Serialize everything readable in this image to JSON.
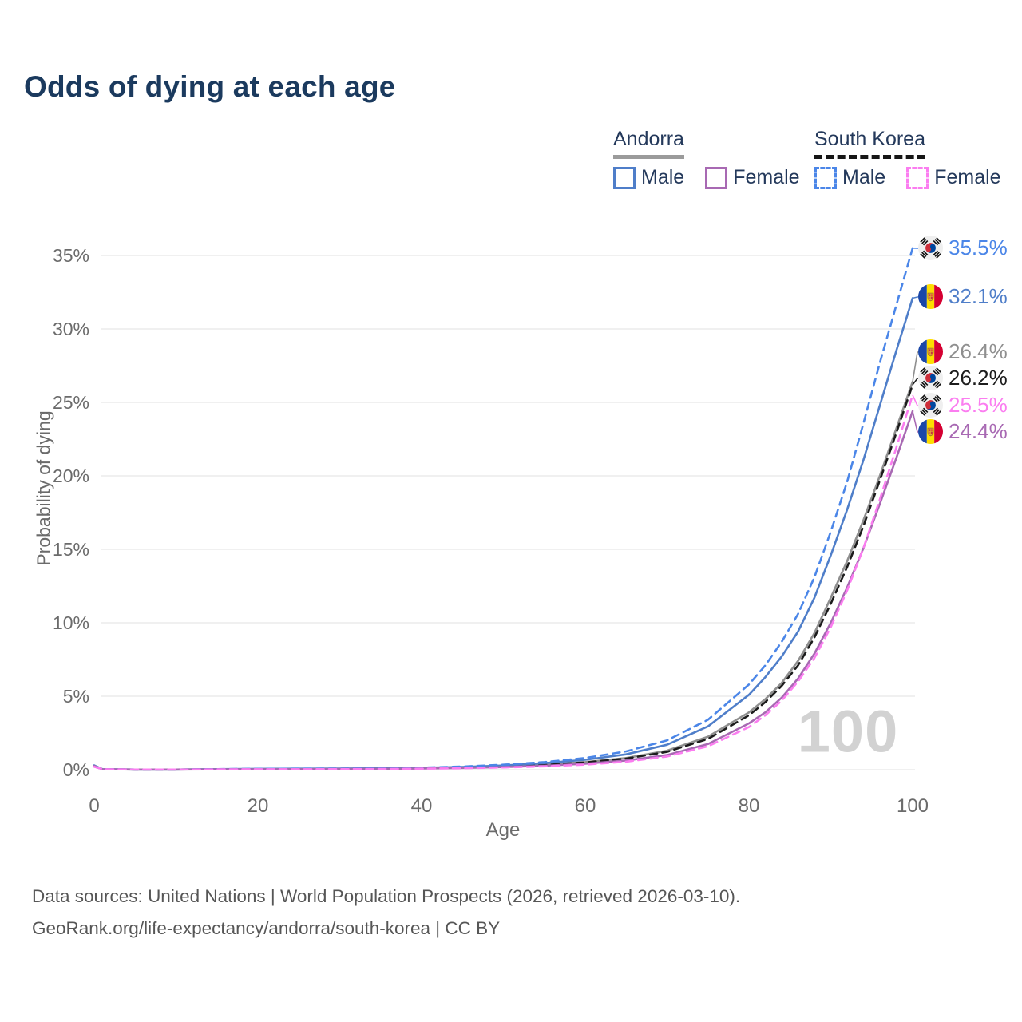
{
  "header": {
    "title": "Odds of dying at each age"
  },
  "legend": {
    "groups": [
      {
        "name": "Andorra",
        "line_style": "solid",
        "underline_color": "#9b9b9b",
        "items": [
          {
            "label": "Male",
            "color": "#4f7ec9",
            "dashed": false
          },
          {
            "label": "Female",
            "color": "#a869b3",
            "dashed": false
          }
        ]
      },
      {
        "name": "South Korea",
        "line_style": "dashed",
        "underline_color": "#161616",
        "items": [
          {
            "label": "Male",
            "color": "#4b86e8",
            "dashed": true
          },
          {
            "label": "Female",
            "color": "#fb7df0",
            "dashed": true
          }
        ]
      }
    ]
  },
  "chart_data": {
    "type": "line",
    "title": "Odds of dying at each age",
    "xlabel": "Age",
    "ylabel": "Probability of dying",
    "xlim": [
      0,
      100
    ],
    "ylim_pct": [
      0,
      37
    ],
    "grid": "horizontal",
    "legend_position": "top-right",
    "hover_age_watermark": "100",
    "x_ticks": [
      {
        "value": 0,
        "label": "0"
      },
      {
        "value": 20,
        "label": "20"
      },
      {
        "value": 40,
        "label": "40"
      },
      {
        "value": 60,
        "label": "60"
      },
      {
        "value": 80,
        "label": "80"
      },
      {
        "value": 100,
        "label": "100"
      }
    ],
    "y_ticks": [
      {
        "value": 0,
        "label": "0%"
      },
      {
        "value": 5,
        "label": "5%"
      },
      {
        "value": 10,
        "label": "10%"
      },
      {
        "value": 15,
        "label": "15%"
      },
      {
        "value": 20,
        "label": "20%"
      },
      {
        "value": 25,
        "label": "25%"
      },
      {
        "value": 30,
        "label": "30%"
      },
      {
        "value": 35,
        "label": "35%"
      }
    ],
    "ages": [
      0,
      1,
      5,
      10,
      15,
      20,
      25,
      30,
      35,
      40,
      45,
      50,
      55,
      60,
      65,
      70,
      75,
      80,
      82,
      84,
      86,
      88,
      90,
      92,
      94,
      96,
      98,
      100
    ],
    "series": [
      {
        "id": "south-korea-male",
        "country": "South Korea",
        "sex": "Male",
        "flag": "kr",
        "color": "#4b86e8",
        "dashed": true,
        "end_value_pct": 35.5,
        "end_label": "35.5%",
        "values_pct": [
          0.25,
          0.04,
          0.01,
          0.01,
          0.04,
          0.06,
          0.07,
          0.08,
          0.1,
          0.14,
          0.22,
          0.34,
          0.52,
          0.8,
          1.25,
          2.0,
          3.4,
          5.8,
          7.1,
          8.7,
          10.6,
          13.1,
          16.2,
          19.6,
          23.6,
          27.7,
          31.6,
          35.5
        ]
      },
      {
        "id": "andorra-male",
        "country": "Andorra",
        "sex": "Male",
        "flag": "ad",
        "color": "#4f7ec9",
        "dashed": false,
        "end_value_pct": 32.1,
        "end_label": "32.1%",
        "values_pct": [
          0.3,
          0.04,
          0.01,
          0.01,
          0.04,
          0.06,
          0.07,
          0.08,
          0.1,
          0.13,
          0.19,
          0.29,
          0.45,
          0.68,
          1.05,
          1.7,
          2.95,
          5.1,
          6.3,
          7.7,
          9.4,
          11.7,
          14.6,
          17.7,
          21.1,
          24.8,
          28.5,
          32.1
        ]
      },
      {
        "id": "andorra-both-sexes",
        "country": "Andorra",
        "sex": "Both sexes",
        "flag": "ad",
        "color": "#8f8f8f",
        "dashed": false,
        "end_value_pct": 26.4,
        "end_label": "26.4%",
        "values_pct": [
          0.28,
          0.03,
          0.01,
          0.01,
          0.03,
          0.04,
          0.05,
          0.06,
          0.08,
          0.1,
          0.15,
          0.23,
          0.35,
          0.52,
          0.8,
          1.3,
          2.25,
          3.9,
          4.8,
          5.9,
          7.4,
          9.3,
          11.7,
          14.2,
          17.0,
          20.0,
          23.2,
          26.4
        ]
      },
      {
        "id": "south-korea-both-sexes",
        "country": "South Korea",
        "sex": "Both sexes",
        "flag": "kr",
        "color": "#1c1c1c",
        "dashed": true,
        "end_value_pct": 26.2,
        "end_label": "26.2%",
        "values_pct": [
          0.22,
          0.03,
          0.01,
          0.01,
          0.03,
          0.04,
          0.05,
          0.06,
          0.07,
          0.1,
          0.14,
          0.22,
          0.33,
          0.5,
          0.76,
          1.22,
          2.1,
          3.7,
          4.6,
          5.7,
          7.1,
          9.0,
          11.3,
          13.8,
          16.6,
          19.7,
          22.9,
          26.2
        ]
      },
      {
        "id": "south-korea-female",
        "country": "South Korea",
        "sex": "Female",
        "flag": "kr",
        "color": "#fb7df0",
        "dashed": true,
        "end_value_pct": 25.5,
        "end_label": "25.5%",
        "values_pct": [
          0.2,
          0.03,
          0.01,
          0.01,
          0.02,
          0.03,
          0.03,
          0.04,
          0.05,
          0.07,
          0.1,
          0.15,
          0.23,
          0.35,
          0.55,
          0.9,
          1.6,
          2.9,
          3.7,
          4.7,
          6.0,
          7.6,
          9.7,
          12.2,
          15.1,
          18.4,
          21.9,
          25.5
        ]
      },
      {
        "id": "andorra-female",
        "country": "Andorra",
        "sex": "Female",
        "flag": "ad",
        "color": "#a869b3",
        "dashed": false,
        "end_value_pct": 24.4,
        "end_label": "24.4%",
        "values_pct": [
          0.26,
          0.03,
          0.01,
          0.01,
          0.02,
          0.03,
          0.04,
          0.05,
          0.06,
          0.08,
          0.12,
          0.18,
          0.27,
          0.41,
          0.63,
          1.0,
          1.75,
          3.15,
          3.9,
          4.9,
          6.2,
          7.9,
          10.0,
          12.4,
          15.1,
          18.1,
          21.2,
          24.4
        ]
      }
    ]
  },
  "footer": {
    "line1": "Data sources: United Nations | World Population Prospects (2026, retrieved 2026-03-10).",
    "line2": "GeoRank.org/life-expectancy/andorra/south-korea | CC BY"
  }
}
